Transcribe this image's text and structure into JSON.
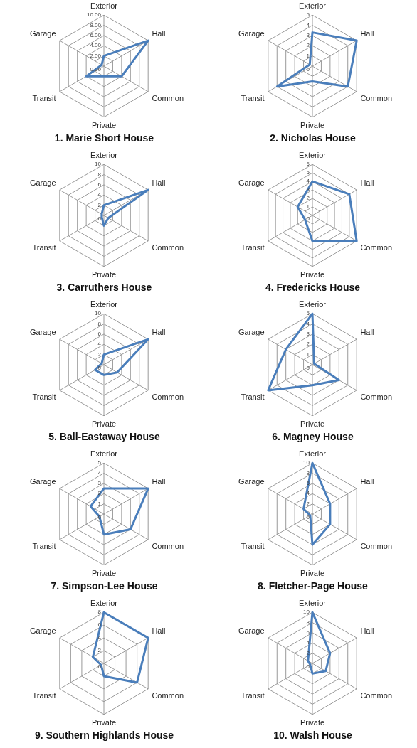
{
  "chart_data": [
    {
      "type": "radar",
      "title": "1. Marie Short House",
      "categories": [
        "Exterior",
        "Hall",
        "Common",
        "Private",
        "Transit",
        "Garage"
      ],
      "series": [
        {
          "color": "#4a7ebb",
          "values": [
            2,
            10,
            4,
            2,
            4,
            0.5
          ]
        }
      ],
      "ylim": [
        0,
        10
      ],
      "yticks": [
        {
          "value": 0,
          "label": "0.00"
        },
        {
          "value": 2,
          "label": "2.00"
        },
        {
          "value": 4,
          "label": "4.00"
        },
        {
          "value": 6,
          "label": "6.00"
        },
        {
          "value": 8,
          "label": "8.00"
        },
        {
          "value": 10,
          "label": "10.00"
        }
      ]
    },
    {
      "type": "radar",
      "title": "2. Nicholas House",
      "categories": [
        "Exterior",
        "Hall",
        "Common",
        "Private",
        "Transit",
        "Garage"
      ],
      "series": [
        {
          "color": "#4a7ebb",
          "values": [
            3.3,
            5,
            4,
            1.5,
            4,
            0.3
          ]
        }
      ],
      "ylim": [
        0,
        5
      ],
      "yticks": [
        0,
        1,
        2,
        3,
        4,
        5
      ]
    },
    {
      "type": "radar",
      "title": "3. Carruthers House",
      "categories": [
        "Exterior",
        "Hall",
        "Common",
        "Private",
        "Transit",
        "Garage"
      ],
      "series": [
        {
          "color": "#4a7ebb",
          "values": [
            2,
            10,
            1,
            2,
            0.5,
            0.5
          ]
        }
      ],
      "ylim": [
        0,
        10
      ],
      "yticks": [
        0,
        2,
        4,
        6,
        8,
        10
      ]
    },
    {
      "type": "radar",
      "title": "4. Fredericks House",
      "categories": [
        "Exterior",
        "Hall",
        "Common",
        "Private",
        "Transit",
        "Garage"
      ],
      "series": [
        {
          "color": "#4a7ebb",
          "values": [
            4,
            5,
            6,
            3,
            1,
            2
          ]
        }
      ],
      "ylim": [
        0,
        6
      ],
      "yticks": [
        0,
        1,
        2,
        3,
        4,
        5,
        6
      ]
    },
    {
      "type": "radar",
      "title": "5. Ball-Eastaway House",
      "categories": [
        "Exterior",
        "Hall",
        "Common",
        "Private",
        "Transit",
        "Garage"
      ],
      "series": [
        {
          "color": "#4a7ebb",
          "values": [
            2,
            10,
            3,
            2,
            2,
            0.5
          ]
        }
      ],
      "ylim": [
        0,
        10
      ],
      "yticks": [
        0,
        2,
        4,
        6,
        8,
        10
      ]
    },
    {
      "type": "radar",
      "title": "6. Magney House",
      "categories": [
        "Exterior",
        "Hall",
        "Common",
        "Private",
        "Transit",
        "Garage"
      ],
      "series": [
        {
          "color": "#4a7ebb",
          "values": [
            5,
            0.2,
            3,
            2,
            5,
            3
          ]
        }
      ],
      "ylim": [
        0,
        5
      ],
      "yticks": [
        0,
        1,
        2,
        3,
        4,
        5
      ]
    },
    {
      "type": "radar",
      "title": "7. Simpson-Lee House",
      "categories": [
        "Exterior",
        "Hall",
        "Common",
        "Private",
        "Transit",
        "Garage"
      ],
      "series": [
        {
          "color": "#4a7ebb",
          "values": [
            2.5,
            5,
            3,
            2,
            0.5,
            1.5
          ]
        }
      ],
      "ylim": [
        0,
        5
      ],
      "yticks": [
        0,
        1,
        2,
        3,
        4,
        5
      ]
    },
    {
      "type": "radar",
      "title": "8. Fletcher-Page House",
      "categories": [
        "Exterior",
        "Hall",
        "Common",
        "Private",
        "Transit",
        "Garage"
      ],
      "series": [
        {
          "color": "#4a7ebb",
          "values": [
            10,
            4,
            4,
            6,
            0.5,
            2
          ]
        }
      ],
      "ylim": [
        0,
        10
      ],
      "yticks": [
        0,
        2,
        4,
        6,
        8,
        10
      ]
    },
    {
      "type": "radar",
      "title": "9. Southern Highlands House",
      "categories": [
        "Exterior",
        "Hall",
        "Common",
        "Private",
        "Transit",
        "Garage"
      ],
      "series": [
        {
          "color": "#4a7ebb",
          "values": [
            8,
            8,
            6,
            2,
            0.5,
            2
          ]
        }
      ],
      "ylim": [
        0,
        8
      ],
      "yticks": [
        0,
        2,
        4,
        6,
        8
      ]
    },
    {
      "type": "radar",
      "title": "10. Walsh House",
      "categories": [
        "Exterior",
        "Hall",
        "Common",
        "Private",
        "Transit",
        "Garage"
      ],
      "series": [
        {
          "color": "#4a7ebb",
          "values": [
            10,
            4,
            3,
            2,
            0.5,
            1
          ]
        }
      ],
      "ylim": [
        0,
        10
      ],
      "yticks": [
        0,
        2,
        4,
        6,
        8,
        10
      ]
    }
  ]
}
